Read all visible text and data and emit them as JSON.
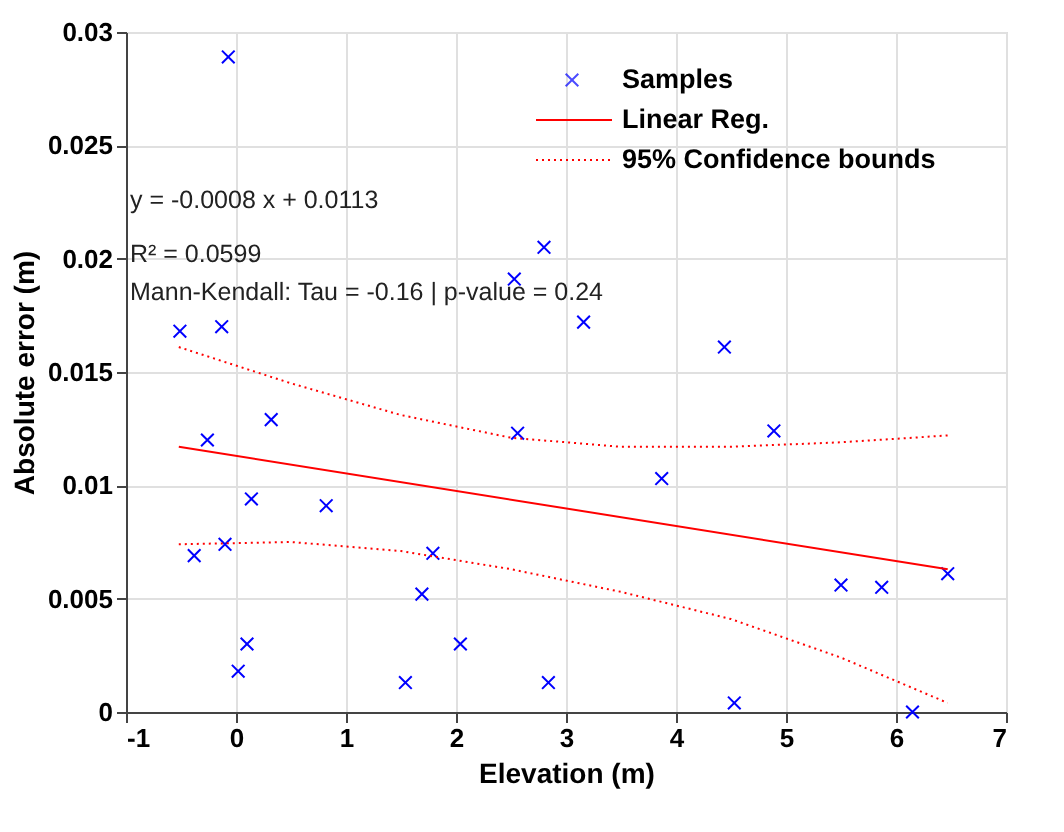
{
  "chart_data": {
    "type": "scatter",
    "xlabel": "Elevation (m)",
    "ylabel": "Absolute error (m)",
    "xlim": [
      -1,
      7
    ],
    "xticks": [
      -1,
      0,
      1,
      2,
      3,
      4,
      5,
      6,
      7
    ],
    "ylim": [
      0,
      0.03
    ],
    "yticks": [
      0,
      0.005,
      0.01,
      0.015,
      0.02,
      0.025,
      0.03
    ],
    "grid": true,
    "legend": "top right",
    "annotations": [
      "y = -0.0008 x + 0.0113",
      "R² = 0.0599",
      "Mann-Kendall: Tau = -0.16 | p-value = 0.24"
    ],
    "series": [
      {
        "name": "Samples",
        "marker": "cross",
        "color": "#0000ff",
        "x": [
          -0.51,
          -0.13,
          -0.07,
          -0.26,
          -0.38,
          -0.1,
          0.14,
          0.32,
          0.1,
          0.02,
          0.82,
          1.54,
          1.69,
          1.79,
          2.04,
          2.56,
          2.53,
          2.8,
          2.84,
          3.16,
          4.44,
          3.87,
          4.89,
          4.53,
          5.5,
          5.87,
          6.47,
          6.15
        ],
        "values": [
          0.0168,
          0.017,
          0.0289,
          0.012,
          0.0069,
          0.0074,
          0.0094,
          0.0129,
          0.003,
          0.0018,
          0.0091,
          0.0013,
          0.0052,
          0.007,
          0.003,
          0.0123,
          0.0191,
          0.0205,
          0.0013,
          0.0172,
          0.0161,
          0.0103,
          0.0124,
          0.0004,
          0.0056,
          0.0055,
          0.0061,
          0.0
        ]
      },
      {
        "name": "Linear Reg.",
        "type": "line",
        "line_style": "solid",
        "color": "#ff0000",
        "x": [
          -0.52,
          6.47
        ],
        "values": [
          0.0117,
          0.0063
        ]
      },
      {
        "name": "95% Confidence bounds",
        "type": "line",
        "line_style": "dotted",
        "color": "#ff0000",
        "x": [
          -0.52,
          0.5,
          1.5,
          2.5,
          3.5,
          4.5,
          5.5,
          6.47
        ],
        "values": [
          0.0161,
          0.0145,
          0.0131,
          0.0121,
          0.0117,
          0.0117,
          0.0119,
          0.0122
        ]
      },
      {
        "type": "line",
        "line_style": "dotted",
        "color": "#ff0000",
        "x": [
          -0.52,
          0.5,
          1.5,
          2.5,
          3.5,
          4.5,
          5.5,
          6.47
        ],
        "values": [
          0.0074,
          0.0075,
          0.0071,
          0.0063,
          0.0053,
          0.0041,
          0.0024,
          0.0004
        ]
      }
    ]
  }
}
